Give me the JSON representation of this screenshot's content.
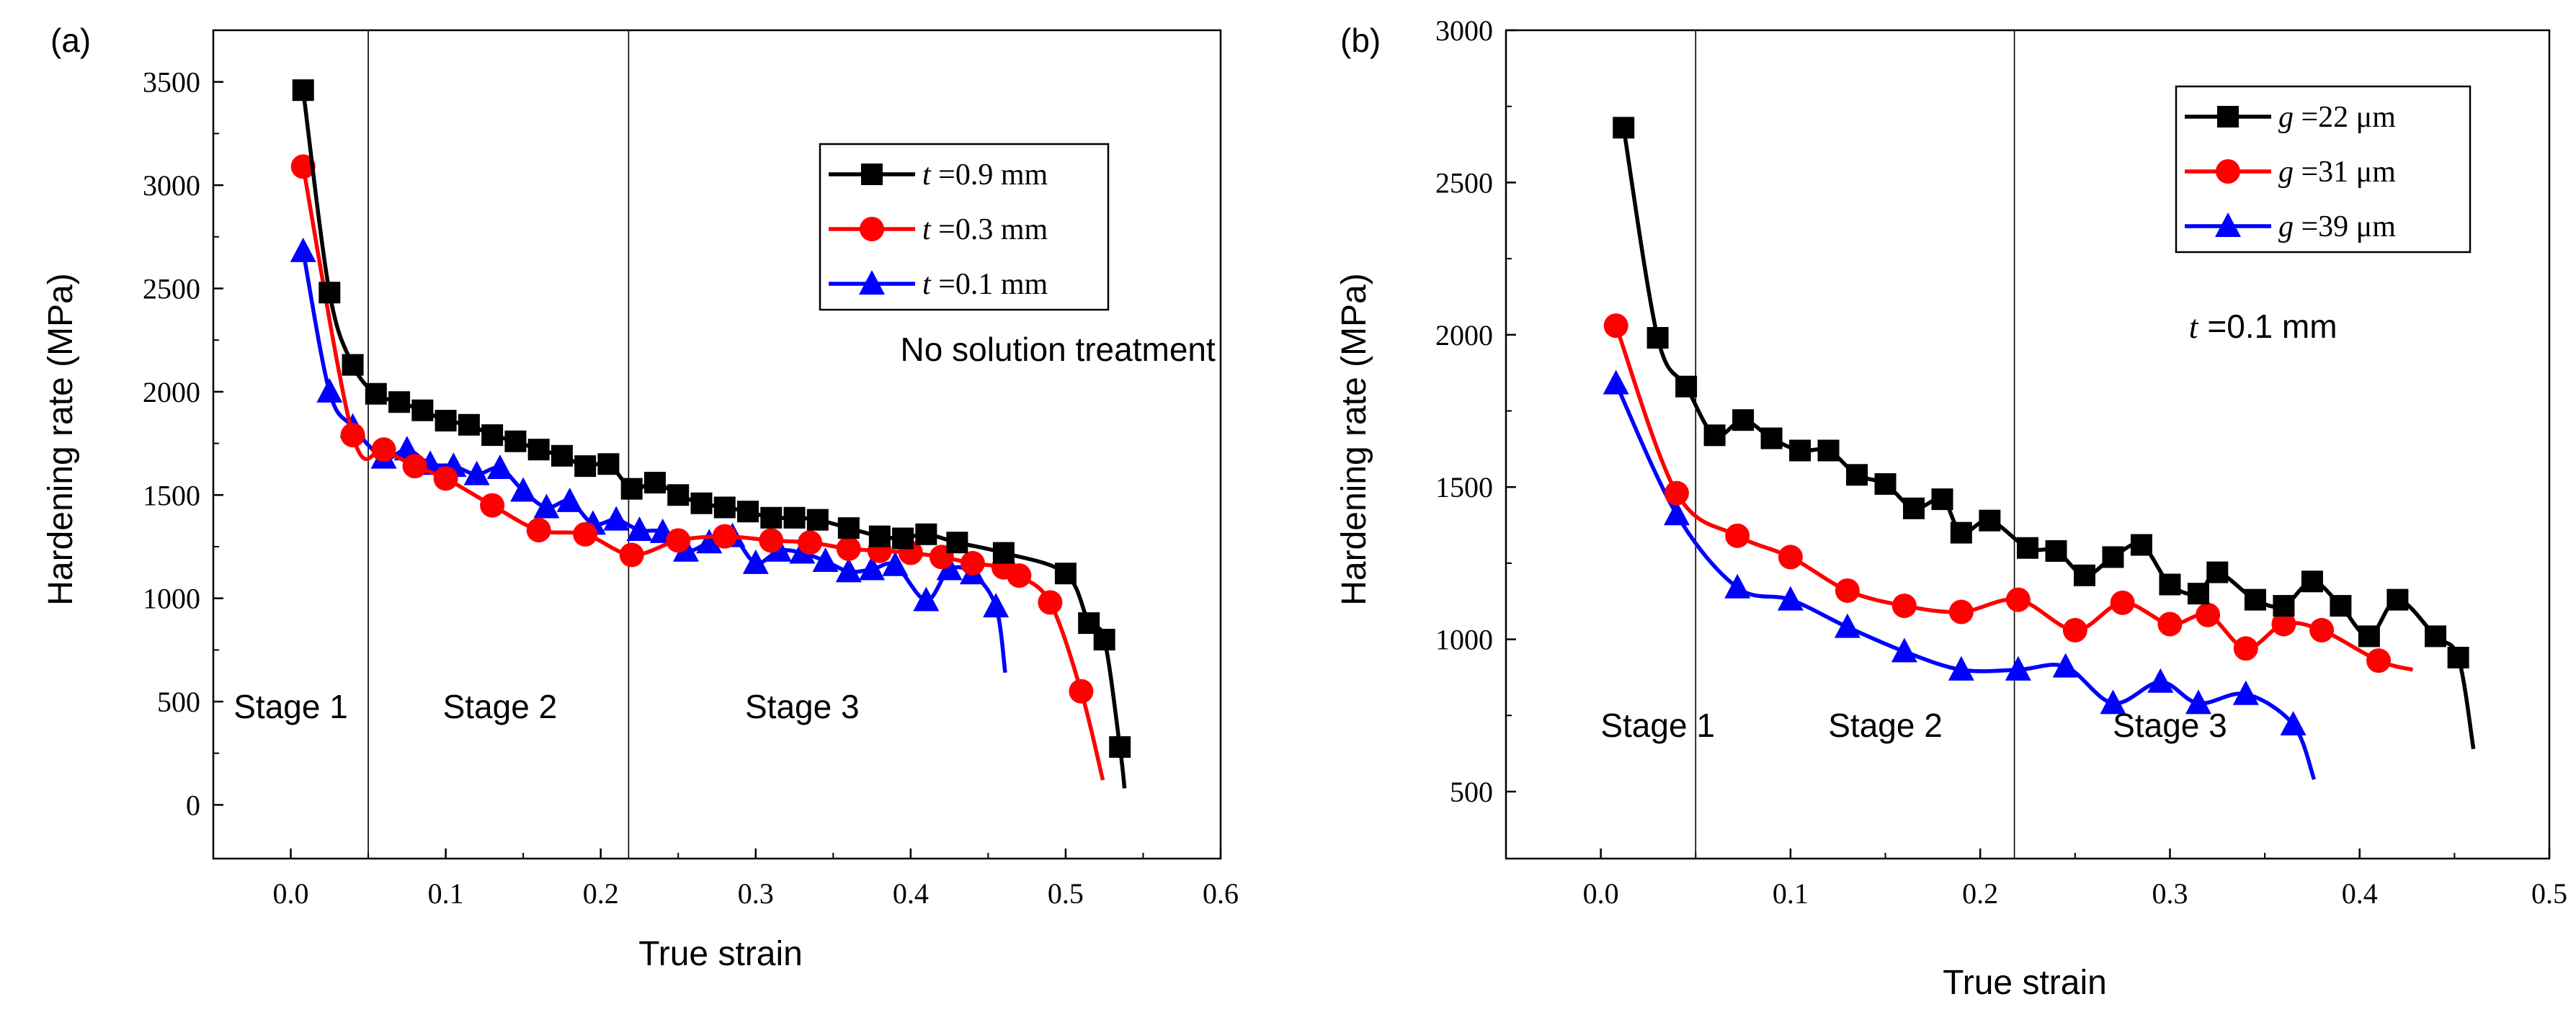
{
  "chart_data": [
    {
      "type": "line",
      "panel_label": "(a)",
      "xlabel": "True strain",
      "ylabel": "Hardening rate (MPa)",
      "xlim": [
        -0.05,
        0.6
      ],
      "ylim": [
        -260,
        3750
      ],
      "xticks": [
        0.0,
        0.1,
        0.2,
        0.3,
        0.4,
        0.5,
        0.6
      ],
      "xtick_labels": [
        "0.0",
        "0.1",
        "0.2",
        "0.3",
        "0.4",
        "0.5",
        "0.6"
      ],
      "yticks": [
        0,
        500,
        1000,
        1500,
        2000,
        2500,
        3000,
        3500
      ],
      "ytick_labels": [
        "0",
        "500",
        "1000",
        "1500",
        "2000",
        "2500",
        "3000",
        "3500"
      ],
      "stage_lines": [
        0.05,
        0.218
      ],
      "stage_labels": [
        {
          "text": "Stage 1",
          "x": 0.0,
          "y": 420
        },
        {
          "text": "Stage 2",
          "x": 0.135,
          "y": 420
        },
        {
          "text": "Stage 3",
          "x": 0.33,
          "y": 420
        }
      ],
      "annotation": {
        "text": "No solution treatment",
        "x": 0.495,
        "y": 2150
      },
      "series": [
        {
          "name": "t =0.9 mm",
          "var": "t",
          "suffix": " =0.9 mm",
          "color": "#000000",
          "marker": "square",
          "x": [
            0.008,
            0.025,
            0.04,
            0.055,
            0.07,
            0.085,
            0.1,
            0.115,
            0.13,
            0.145,
            0.16,
            0.175,
            0.19,
            0.205,
            0.22,
            0.235,
            0.25,
            0.265,
            0.28,
            0.295,
            0.31,
            0.325,
            0.34,
            0.36,
            0.38,
            0.395,
            0.41,
            0.43,
            0.46,
            0.5,
            0.515,
            0.525,
            0.535
          ],
          "y": [
            3460,
            2480,
            2130,
            1990,
            1950,
            1910,
            1860,
            1840,
            1790,
            1760,
            1720,
            1690,
            1640,
            1650,
            1530,
            1560,
            1500,
            1460,
            1440,
            1420,
            1390,
            1390,
            1380,
            1340,
            1300,
            1290,
            1310,
            1270,
            1220,
            1120,
            880,
            800,
            280
          ],
          "tail": [
            0.538,
            80
          ]
        },
        {
          "name": "t =0.3 mm",
          "var": "t",
          "suffix": " =0.3 mm",
          "color": "#ff0000",
          "marker": "circle",
          "x": [
            0.008,
            0.04,
            0.06,
            0.08,
            0.1,
            0.13,
            0.16,
            0.19,
            0.22,
            0.25,
            0.28,
            0.31,
            0.335,
            0.36,
            0.38,
            0.4,
            0.42,
            0.44,
            0.46,
            0.47,
            0.49,
            0.51
          ],
          "y": [
            3090,
            1790,
            1720,
            1640,
            1580,
            1450,
            1330,
            1310,
            1210,
            1280,
            1300,
            1280,
            1270,
            1240,
            1230,
            1220,
            1200,
            1170,
            1150,
            1110,
            980,
            550
          ],
          "tail": [
            0.524,
            120
          ]
        },
        {
          "name": "t =0.1 mm",
          "var": "t",
          "suffix": " =0.1 mm",
          "color": "#0000ff",
          "marker": "triangle",
          "x": [
            0.008,
            0.025,
            0.04,
            0.06,
            0.075,
            0.09,
            0.105,
            0.12,
            0.135,
            0.15,
            0.165,
            0.18,
            0.195,
            0.21,
            0.225,
            0.24,
            0.255,
            0.27,
            0.285,
            0.3,
            0.315,
            0.33,
            0.345,
            0.36,
            0.375,
            0.39,
            0.41,
            0.425,
            0.44,
            0.455
          ],
          "y": [
            2680,
            2000,
            1830,
            1680,
            1720,
            1650,
            1640,
            1600,
            1630,
            1520,
            1440,
            1470,
            1360,
            1380,
            1330,
            1320,
            1230,
            1270,
            1300,
            1170,
            1230,
            1220,
            1180,
            1130,
            1140,
            1160,
            990,
            1140,
            1120,
            960
          ],
          "tail": [
            0.461,
            640
          ]
        }
      ]
    },
    {
      "type": "line",
      "panel_label": "(b)",
      "xlabel": "True strain",
      "ylabel": "Hardening rate (MPa)",
      "xlim": [
        -0.05,
        0.5
      ],
      "ylim": [
        280,
        3000
      ],
      "xticks": [
        0.0,
        0.1,
        0.2,
        0.3,
        0.4,
        0.5
      ],
      "xtick_labels": [
        "0.0",
        "0.1",
        "0.2",
        "0.3",
        "0.4",
        "0.5"
      ],
      "yticks": [
        500,
        1000,
        1500,
        2000,
        2500,
        3000
      ],
      "ytick_labels": [
        "500",
        "1000",
        "1500",
        "2000",
        "2500",
        "3000"
      ],
      "stage_lines": [
        0.05,
        0.218
      ],
      "stage_labels": [
        {
          "text": "Stage 1",
          "x": 0.03,
          "y": 680
        },
        {
          "text": "Stage 2",
          "x": 0.15,
          "y": 680
        },
        {
          "text": "Stage 3",
          "x": 0.3,
          "y": 680
        }
      ],
      "annotation": {
        "label": "t",
        "suffix": " =0.1 mm",
        "x": 0.31,
        "y": 1990
      },
      "series": [
        {
          "name": "g =22 μm",
          "var": "g",
          "suffix": " =22 μm",
          "color": "#000000",
          "marker": "square",
          "x": [
            0.012,
            0.03,
            0.045,
            0.06,
            0.075,
            0.09,
            0.105,
            0.12,
            0.135,
            0.15,
            0.165,
            0.18,
            0.19,
            0.205,
            0.225,
            0.24,
            0.255,
            0.27,
            0.285,
            0.3,
            0.315,
            0.325,
            0.345,
            0.36,
            0.375,
            0.39,
            0.405,
            0.42,
            0.44,
            0.452
          ],
          "y": [
            2680,
            1990,
            1830,
            1670,
            1720,
            1660,
            1620,
            1620,
            1540,
            1510,
            1430,
            1460,
            1350,
            1390,
            1300,
            1290,
            1210,
            1270,
            1310,
            1180,
            1150,
            1220,
            1130,
            1110,
            1190,
            1110,
            1010,
            1130,
            1010,
            940
          ],
          "tail": [
            0.46,
            640
          ]
        },
        {
          "name": "g =31 μm",
          "var": "g",
          "suffix": " =31 μm",
          "color": "#ff0000",
          "marker": "circle",
          "x": [
            0.008,
            0.04,
            0.072,
            0.1,
            0.13,
            0.16,
            0.19,
            0.22,
            0.25,
            0.275,
            0.3,
            0.32,
            0.34,
            0.36,
            0.38,
            0.41
          ],
          "y": [
            2030,
            1480,
            1340,
            1270,
            1160,
            1110,
            1090,
            1130,
            1030,
            1120,
            1050,
            1080,
            970,
            1050,
            1030,
            930
          ],
          "tail": [
            0.428,
            900
          ]
        },
        {
          "name": "g =39 μm",
          "var": "g",
          "suffix": " =39 μm",
          "color": "#0000ff",
          "marker": "triangle",
          "x": [
            0.008,
            0.04,
            0.072,
            0.1,
            0.13,
            0.16,
            0.19,
            0.22,
            0.245,
            0.27,
            0.295,
            0.315,
            0.34,
            0.365
          ],
          "y": [
            1840,
            1410,
            1170,
            1130,
            1040,
            960,
            900,
            900,
            910,
            790,
            860,
            790,
            820,
            720
          ],
          "tail": [
            0.376,
            540
          ]
        }
      ]
    }
  ]
}
